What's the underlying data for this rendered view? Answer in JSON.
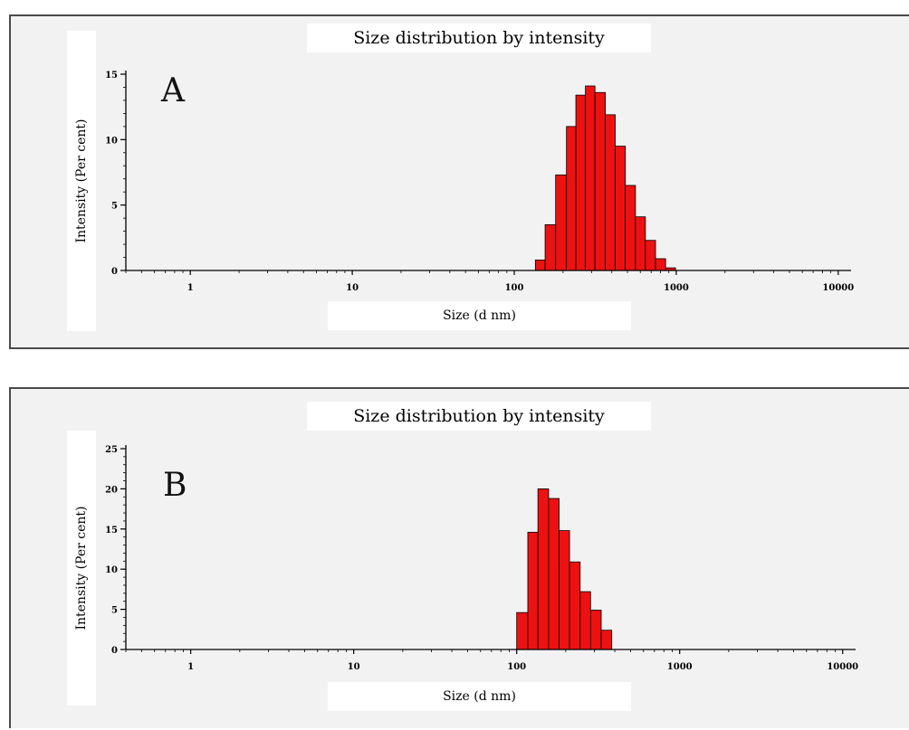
{
  "chart_data": [
    {
      "type": "bar",
      "panel_label": "A",
      "title": "Size distribution by intensity",
      "xlabel": "Size (d nm)",
      "ylabel": "Intensity (Per cent)",
      "xscale": "log",
      "xlim": [
        0.4,
        12000
      ],
      "ylim": [
        0,
        15
      ],
      "x_ticks": [
        {
          "value": 1,
          "label": "1"
        },
        {
          "value": 10,
          "label": "10"
        },
        {
          "value": 100,
          "label": "100"
        },
        {
          "value": 1000,
          "label": "1000"
        },
        {
          "value": 10000,
          "label": "10000"
        }
      ],
      "y_ticks": [
        {
          "value": 0,
          "label": "0"
        },
        {
          "value": 5,
          "label": "5"
        },
        {
          "value": 10,
          "label": "10"
        },
        {
          "value": 15,
          "label": "15"
        }
      ],
      "bar_color": "#ee1111",
      "bins": [
        {
          "x0": 135,
          "x1": 155,
          "y": 0.8
        },
        {
          "x0": 155,
          "x1": 180,
          "y": 3.5
        },
        {
          "x0": 180,
          "x1": 210,
          "y": 7.3
        },
        {
          "x0": 210,
          "x1": 240,
          "y": 11.0
        },
        {
          "x0": 240,
          "x1": 275,
          "y": 13.4
        },
        {
          "x0": 275,
          "x1": 315,
          "y": 14.1
        },
        {
          "x0": 315,
          "x1": 365,
          "y": 13.6
        },
        {
          "x0": 365,
          "x1": 420,
          "y": 11.9
        },
        {
          "x0": 420,
          "x1": 485,
          "y": 9.5
        },
        {
          "x0": 485,
          "x1": 560,
          "y": 6.5
        },
        {
          "x0": 560,
          "x1": 645,
          "y": 4.1
        },
        {
          "x0": 645,
          "x1": 745,
          "y": 2.3
        },
        {
          "x0": 745,
          "x1": 860,
          "y": 0.9
        },
        {
          "x0": 860,
          "x1": 990,
          "y": 0.2
        }
      ]
    },
    {
      "type": "bar",
      "panel_label": "B",
      "title": "Size distribution by intensity",
      "xlabel": "Size (d nm)",
      "ylabel": "Intensity (Per cent)",
      "xscale": "log",
      "xlim": [
        0.4,
        12000
      ],
      "ylim": [
        0,
        25
      ],
      "x_ticks": [
        {
          "value": 1,
          "label": "1"
        },
        {
          "value": 10,
          "label": "10"
        },
        {
          "value": 100,
          "label": "100"
        },
        {
          "value": 1000,
          "label": "1000"
        },
        {
          "value": 10000,
          "label": "10000"
        }
      ],
      "y_ticks": [
        {
          "value": 0,
          "label": "0"
        },
        {
          "value": 5,
          "label": "5"
        },
        {
          "value": 10,
          "label": "10"
        },
        {
          "value": 15,
          "label": "15"
        },
        {
          "value": 20,
          "label": "20"
        },
        {
          "value": 25,
          "label": "25"
        }
      ],
      "bar_color": "#ee1111",
      "bins": [
        {
          "x0": 100,
          "x1": 117,
          "y": 4.6
        },
        {
          "x0": 117,
          "x1": 135,
          "y": 14.6
        },
        {
          "x0": 135,
          "x1": 157,
          "y": 20.0
        },
        {
          "x0": 157,
          "x1": 182,
          "y": 18.8
        },
        {
          "x0": 182,
          "x1": 211,
          "y": 14.8
        },
        {
          "x0": 211,
          "x1": 245,
          "y": 10.9
        },
        {
          "x0": 245,
          "x1": 284,
          "y": 7.2
        },
        {
          "x0": 284,
          "x1": 330,
          "y": 4.9
        },
        {
          "x0": 330,
          "x1": 383,
          "y": 2.4
        }
      ]
    }
  ]
}
